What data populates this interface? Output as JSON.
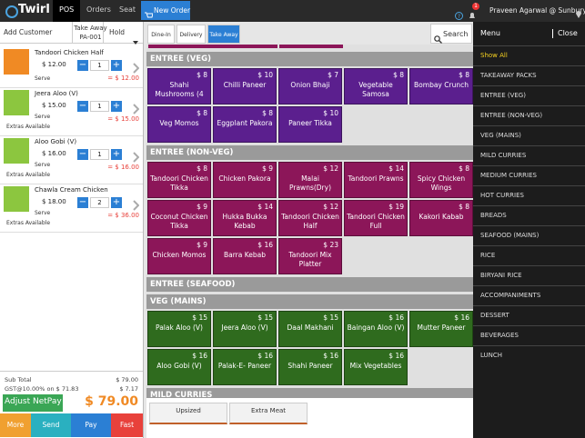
{
  "topbar": {
    "logo": "Twirl",
    "tabs": [
      "POS",
      "Orders",
      "Seat"
    ],
    "active_tab": 0,
    "new_order": "New Order",
    "notification_count": "1",
    "user": "Praveen Agarwal @ Sunbury"
  },
  "order_header": {
    "add_customer": "Add Customer",
    "order_type": "Take Away",
    "order_id": "PA-001",
    "hold": "Hold"
  },
  "order_items": [
    {
      "name": "Tandoori Chicken Half",
      "color": "#f08a24",
      "price": "$ 12.00",
      "qty": "1",
      "total": "= $ 12.00",
      "status": "Serve"
    },
    {
      "name": "Jeera Aloo (V)",
      "color": "#8cc63f",
      "price": "$ 15.00",
      "qty": "1",
      "total": "= $ 15.00",
      "status": "Serve",
      "extras": "Extras Available"
    },
    {
      "name": "Aloo Gobi (V)",
      "color": "#8cc63f",
      "price": "$ 16.00",
      "qty": "1",
      "total": "= $ 16.00",
      "status": "Serve",
      "extras": "Extras Available"
    },
    {
      "name": "Chawla Cream Chicken",
      "color": "#8cc63f",
      "price": "$ 18.00",
      "qty": "2",
      "total": "= $ 36.00",
      "status": "Serve",
      "extras": "Extras Available"
    }
  ],
  "summary": {
    "subtotal_label": "Sub Total",
    "subtotal": "$ 79.00",
    "gst_label": "GST@10.00% on $ 71.83",
    "gst": "$ 7.17",
    "adjust": "Adjust NetPay",
    "total": "$ 79.00",
    "actions": [
      {
        "label": "More",
        "color": "#f0a030"
      },
      {
        "label": "Send",
        "color": "#2ab0c0"
      },
      {
        "label": "Pay",
        "color": "#2b7fd4"
      },
      {
        "label": "Fast",
        "color": "#e8413b"
      }
    ]
  },
  "order_types": [
    "Dine-In",
    "Delivery",
    "Take Away"
  ],
  "active_order_type": 2,
  "search": "Search",
  "sections": [
    {
      "title": "ENTREE (VEG)",
      "color": "#5b1f8e",
      "items": [
        {
          "name": "Shahi Mushrooms (4",
          "price": "$ 8"
        },
        {
          "name": "Chilli Paneer",
          "price": "$ 10"
        },
        {
          "name": "Onion Bhaji",
          "price": "$ 7"
        },
        {
          "name": "Vegetable Samosa",
          "price": "$ 8"
        },
        {
          "name": "Bombay Crunch",
          "price": "$ 8"
        },
        {
          "name": "Veg Momos",
          "price": "$ 8"
        },
        {
          "name": "Eggplant Pakora",
          "price": "$ 8"
        },
        {
          "name": "Paneer Tikka",
          "price": "$ 10"
        }
      ]
    },
    {
      "title": "ENTREE (NON-VEG)",
      "color": "#8c1659",
      "items": [
        {
          "name": "Tandoori Chicken Tikka",
          "price": "$ 8"
        },
        {
          "name": "Chicken Pakora",
          "price": "$ 9"
        },
        {
          "name": "Malai Prawns(Dry)",
          "price": "$ 12"
        },
        {
          "name": "Tandoori Prawns",
          "price": "$ 14"
        },
        {
          "name": "Spicy Chicken Wings",
          "price": "$ 8"
        },
        {
          "name": "Coconut Chicken Tikka",
          "price": "$ 9"
        },
        {
          "name": "Hukka Bukka Kebab",
          "price": "$ 14"
        },
        {
          "name": "Tandoori Chicken Half",
          "price": "$ 12"
        },
        {
          "name": "Tandoori Chicken Full",
          "price": "$ 19"
        },
        {
          "name": "Kakori Kabab",
          "price": "$ 8"
        },
        {
          "name": "Chicken Momos",
          "price": "$ 9"
        },
        {
          "name": "Barra Kebab",
          "price": "$ 16"
        },
        {
          "name": "Tandoori Mix Platter",
          "price": "$ 23"
        }
      ]
    },
    {
      "title": "ENTREE (SEAFOOD)",
      "color": "#555555",
      "items": []
    },
    {
      "title": "VEG (MAINS)",
      "color": "#2f6b1e",
      "items": [
        {
          "name": "Palak Aloo (V)",
          "price": "$ 15"
        },
        {
          "name": "Jeera Aloo (V)",
          "price": "$ 15"
        },
        {
          "name": "Daal Makhani",
          "price": "$ 15"
        },
        {
          "name": "Baingan Aloo (V)",
          "price": "$ 16"
        },
        {
          "name": "Mutter Paneer",
          "price": "$ 16"
        },
        {
          "name": "Aloo Gobi (V)",
          "price": "$ 16"
        },
        {
          "name": "Palak-E- Paneer",
          "price": "$ 16"
        },
        {
          "name": "Shahi Paneer",
          "price": "$ 16"
        },
        {
          "name": "Mix Vegetables",
          "price": "$ 16"
        }
      ]
    },
    {
      "title": "MILD CURRIES",
      "color": "#555555",
      "items": []
    }
  ],
  "modifiers": [
    "Upsized",
    "Extra Meat"
  ],
  "menu": {
    "title": "Menu",
    "close": "Close",
    "items": [
      "Show All",
      "TAKEAWAY PACKS",
      "ENTREE (VEG)",
      "ENTREE (NON-VEG)",
      "VEG (MAINS)",
      "MILD CURRIES",
      "MEDIUM CURRIES",
      "HOT CURRIES",
      "BREADS",
      "SEAFOOD (MAINS)",
      "RICE",
      "BIRYANI RICE",
      "ACCOMPANIMENTS",
      "DESSERT",
      "BEVERAGES",
      "LUNCH"
    ],
    "active": 0
  }
}
